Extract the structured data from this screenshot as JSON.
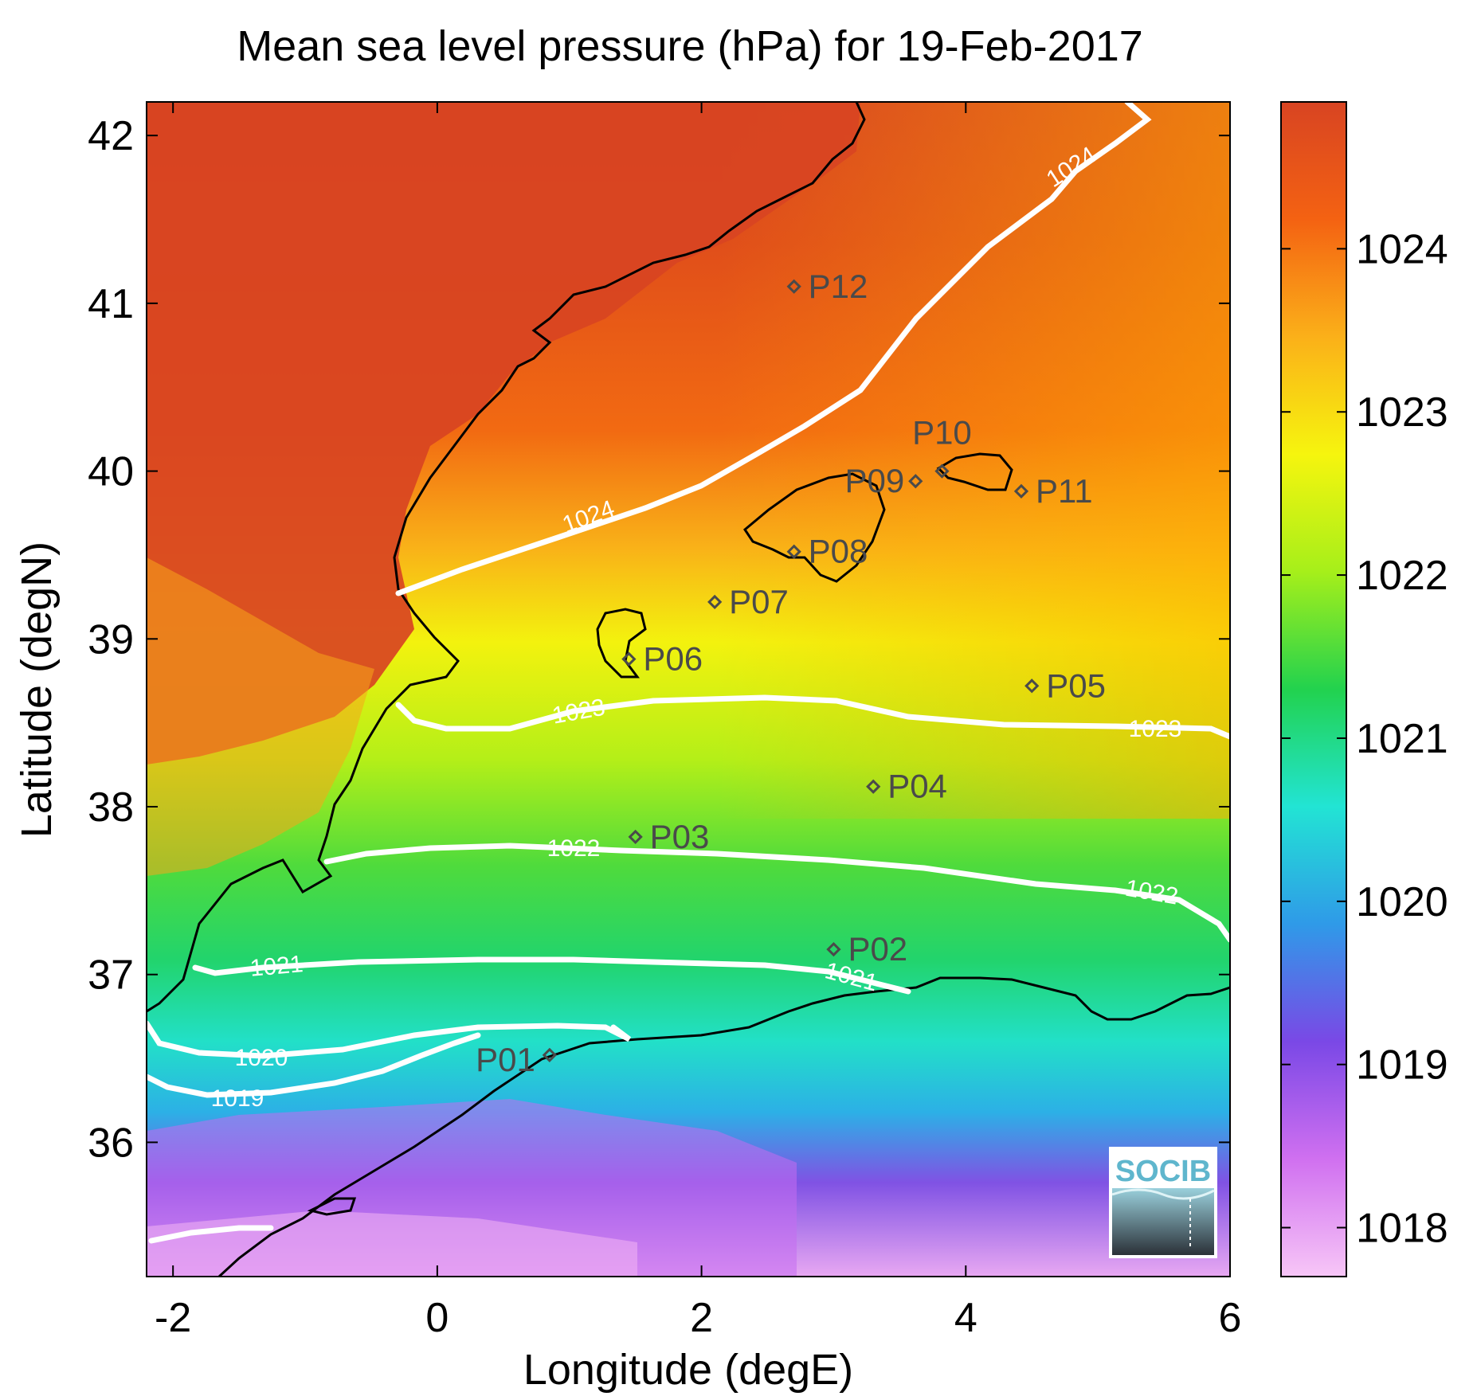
{
  "title": "Mean sea level pressure (hPa) for 19-Feb-2017",
  "x_axis": {
    "label": "Longitude (degE)",
    "range": [
      -2.2,
      6.0
    ],
    "ticks": [
      "-2",
      "0",
      "2",
      "4",
      "6"
    ]
  },
  "y_axis": {
    "label": "Latitude (degN)",
    "range": [
      35.2,
      42.2
    ],
    "ticks": [
      "36",
      "37",
      "38",
      "39",
      "40",
      "41",
      "42"
    ]
  },
  "colorbar": {
    "range": [
      1017.7,
      1024.9
    ],
    "ticks": [
      "1018",
      "1019",
      "1020",
      "1021",
      "1022",
      "1023",
      "1024"
    ],
    "colors": [
      "#f7c6f7",
      "#d070f0",
      "#7a48e6",
      "#2f9ae8",
      "#22e4d4",
      "#22d24e",
      "#a6ef1a",
      "#f6f50e",
      "#fbb019",
      "#f46212",
      "#d84422"
    ]
  },
  "contours": [
    {
      "level": "1019",
      "label_text": "1019"
    },
    {
      "level": "1020",
      "label_text": "1020"
    },
    {
      "level": "1021",
      "label_text": "1021"
    },
    {
      "level": "1022",
      "label_text": "1022"
    },
    {
      "level": "1023",
      "label_text": "1023"
    },
    {
      "level": "1024",
      "label_text": "1024"
    }
  ],
  "stations": [
    {
      "id": "P01",
      "lon": 0.85,
      "lat": 36.52
    },
    {
      "id": "P02",
      "lon": 3.0,
      "lat": 37.15
    },
    {
      "id": "P03",
      "lon": 1.5,
      "lat": 37.82
    },
    {
      "id": "P04",
      "lon": 3.3,
      "lat": 38.12
    },
    {
      "id": "P05",
      "lon": 4.5,
      "lat": 38.72
    },
    {
      "id": "P06",
      "lon": 1.45,
      "lat": 38.88
    },
    {
      "id": "P07",
      "lon": 2.1,
      "lat": 39.22
    },
    {
      "id": "P08",
      "lon": 2.7,
      "lat": 39.52
    },
    {
      "id": "P09",
      "lon": 3.62,
      "lat": 39.94
    },
    {
      "id": "P10",
      "lon": 3.82,
      "lat": 40.0
    },
    {
      "id": "P11",
      "lon": 4.42,
      "lat": 39.88
    },
    {
      "id": "P12",
      "lon": 2.7,
      "lat": 41.1
    }
  ],
  "logo": {
    "text": "SOCIB"
  }
}
